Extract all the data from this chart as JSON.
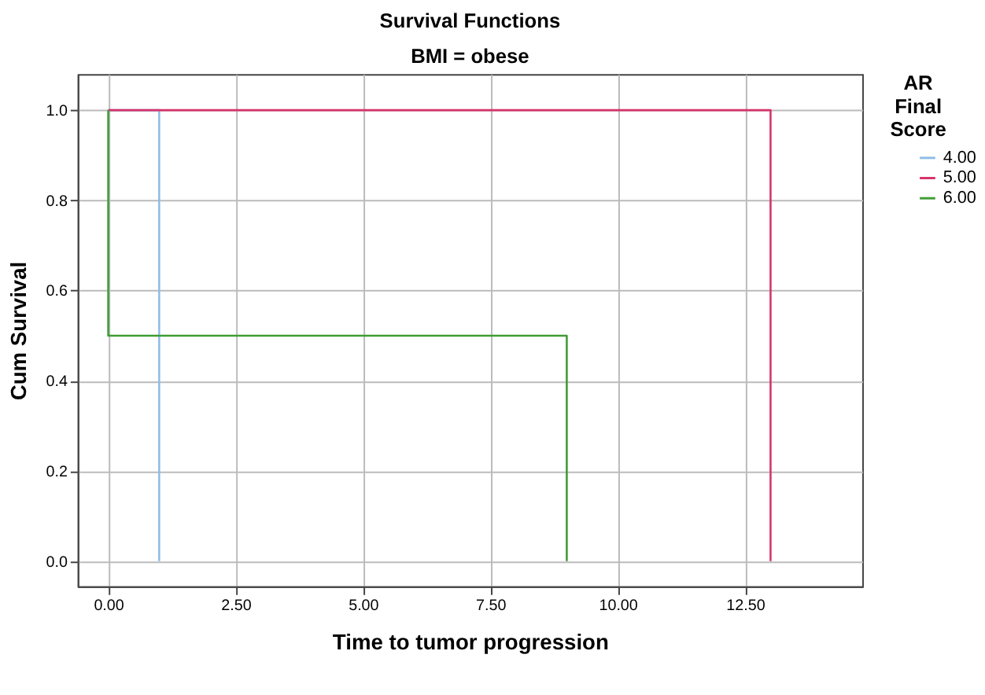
{
  "chart_data": {
    "type": "step",
    "title": "Survival Functions",
    "subtitle": "BMI = obese",
    "xlabel": "Time to tumor progression",
    "ylabel": "Cum Survival",
    "legend_title": "AR Final Score",
    "xlim": [
      -0.6,
      14.8
    ],
    "ylim": [
      -0.056,
      1.08
    ],
    "xticks": [
      {
        "value": 0,
        "label": "0.00"
      },
      {
        "value": 2.5,
        "label": "2.50"
      },
      {
        "value": 5,
        "label": "5.00"
      },
      {
        "value": 7.5,
        "label": "7.50"
      },
      {
        "value": 10,
        "label": "10.00"
      },
      {
        "value": 12.5,
        "label": "12.50"
      }
    ],
    "yticks": [
      {
        "value": 0,
        "label": "0.0"
      },
      {
        "value": 0.2,
        "label": "0.2"
      },
      {
        "value": 0.4,
        "label": "0.4"
      },
      {
        "value": 0.6,
        "label": "0.6"
      },
      {
        "value": 0.8,
        "label": "0.8"
      },
      {
        "value": 1,
        "label": "1.0"
      }
    ],
    "grid": true,
    "legend": "top right",
    "marker": "none",
    "line_style": "solid",
    "series": [
      {
        "name": "4.00",
        "color": "#8fbce6",
        "x": [
          0,
          1
        ],
        "values": [
          1,
          0
        ]
      },
      {
        "name": "5.00",
        "color": "#d6336c",
        "x": [
          0,
          13
        ],
        "values": [
          1,
          0
        ]
      },
      {
        "name": "6.00",
        "color": "#3f9c35",
        "x": [
          0,
          0,
          9
        ],
        "values": [
          1,
          0.5,
          0
        ]
      }
    ]
  }
}
